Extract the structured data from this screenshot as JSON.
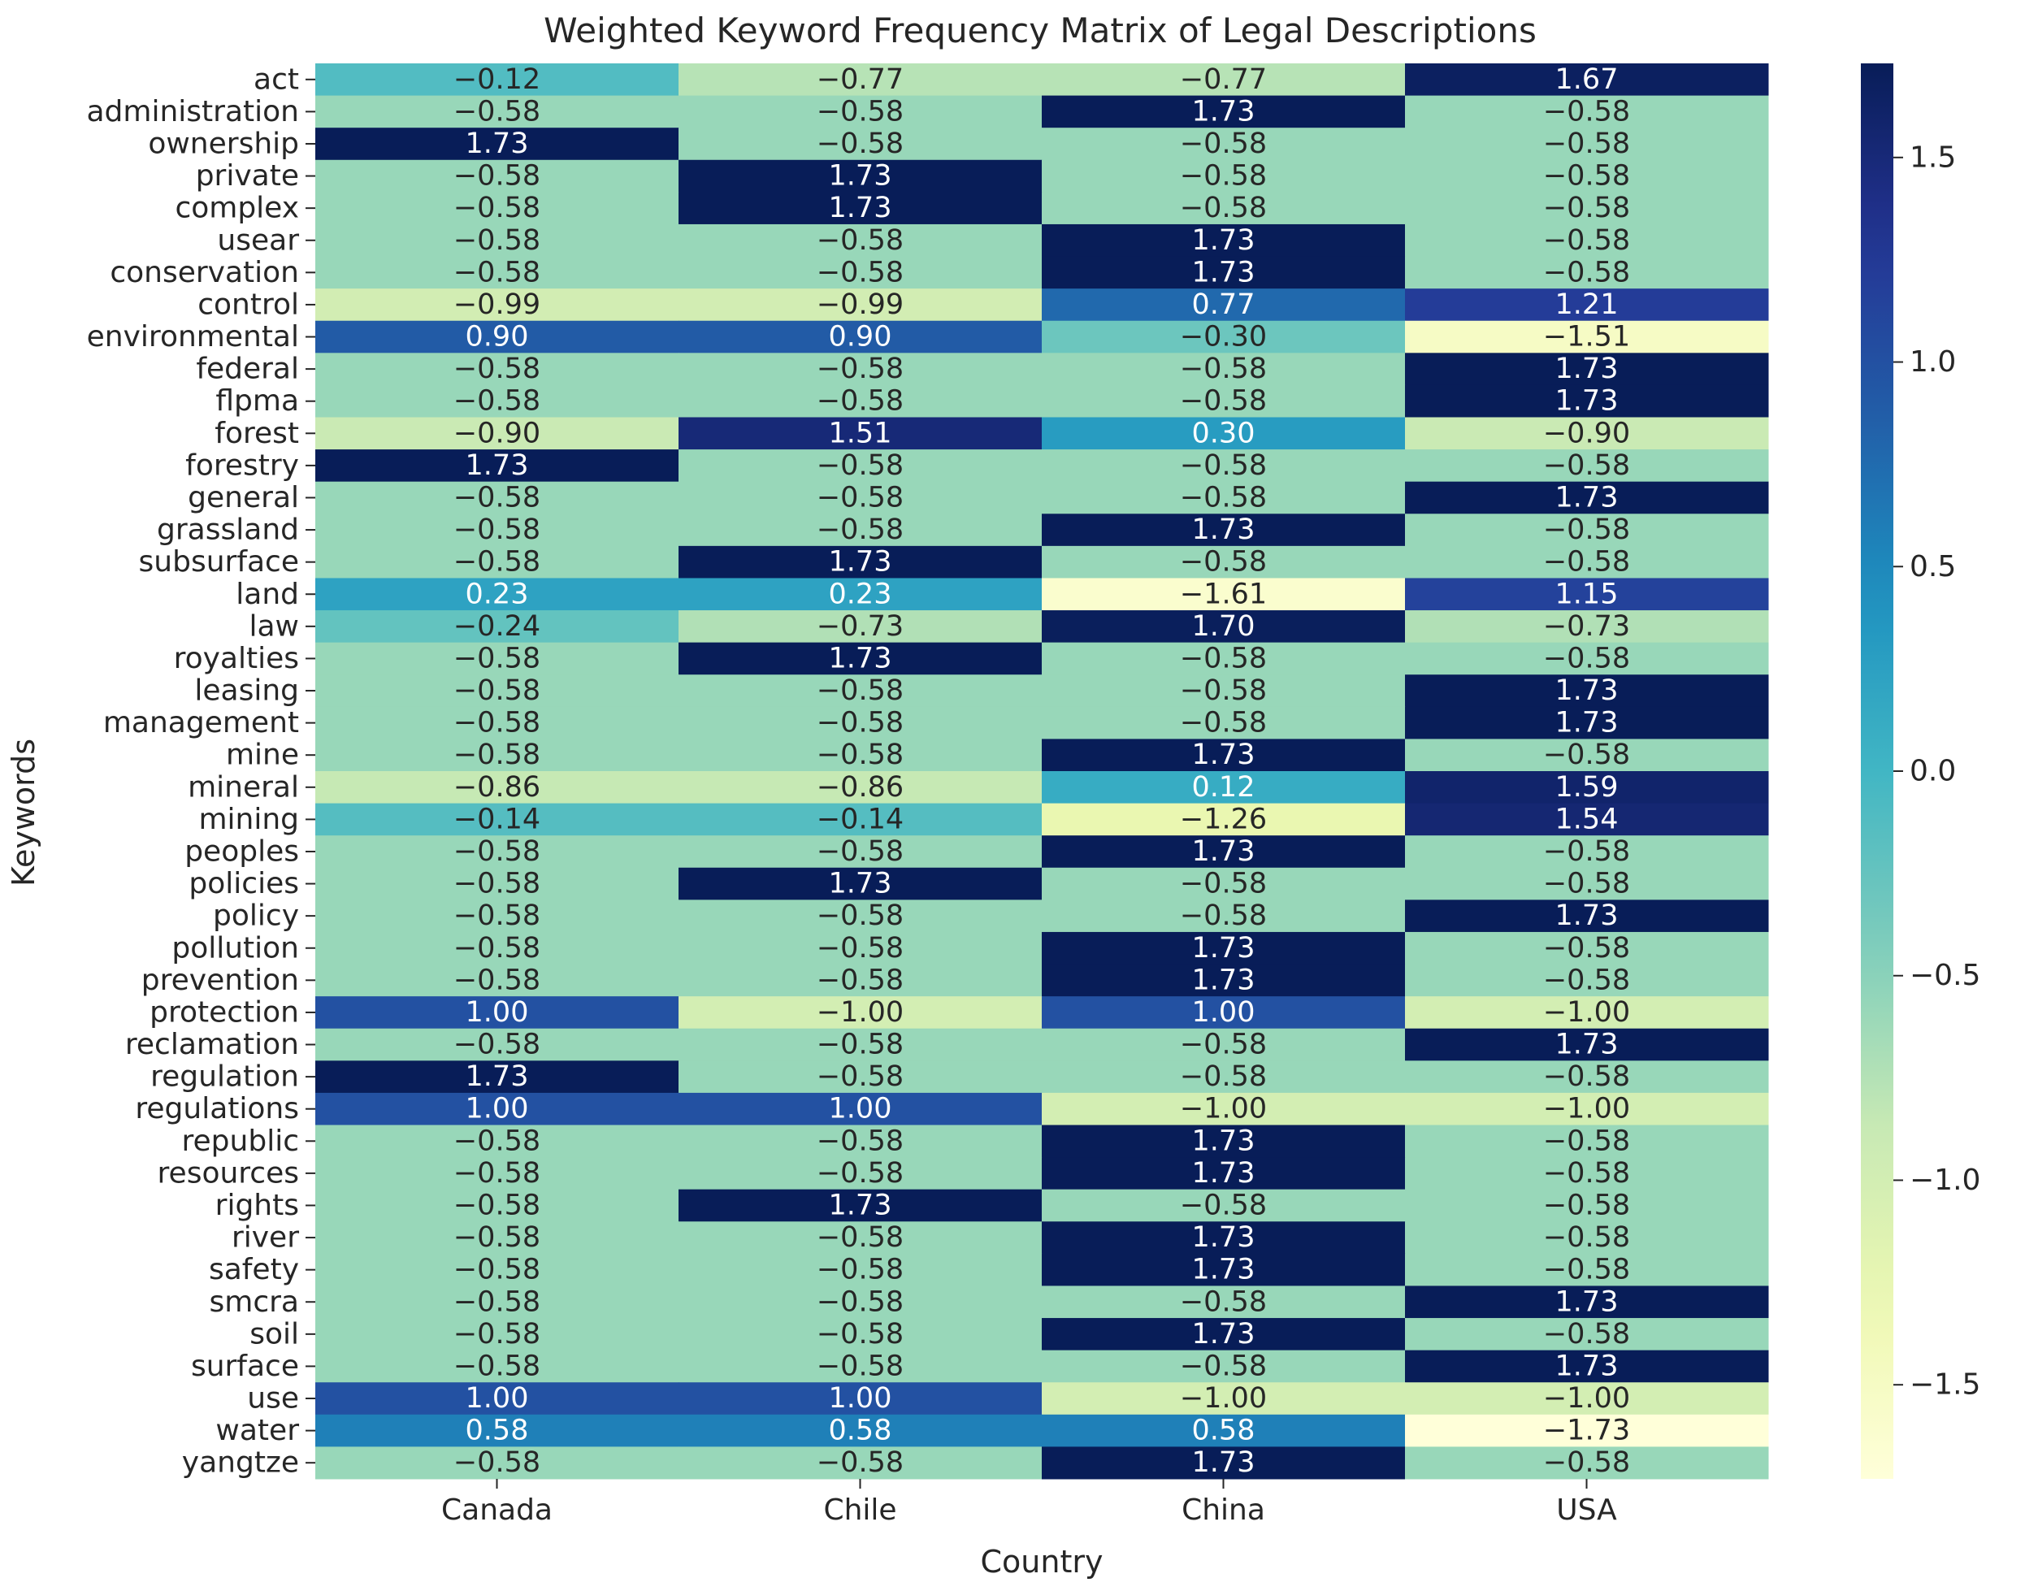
{
  "chart_data": {
    "type": "heatmap",
    "title": "Weighted Keyword Frequency Matrix of Legal Descriptions",
    "xlabel": "Country",
    "ylabel": "Keywords",
    "columns": [
      "Canada",
      "Chile",
      "China",
      "USA"
    ],
    "rows": [
      "act",
      "administration",
      "ownership",
      "private",
      "complex",
      "usear",
      "conservation",
      "control",
      "environmental",
      "federal",
      "flpma",
      "forest",
      "forestry",
      "general",
      "grassland",
      "subsurface",
      "land",
      "law",
      "royalties",
      "leasing",
      "management",
      "mine",
      "mineral",
      "mining",
      "peoples",
      "policies",
      "policy",
      "pollution",
      "prevention",
      "protection",
      "reclamation",
      "regulation",
      "regulations",
      "republic",
      "resources",
      "rights",
      "river",
      "safety",
      "smcra",
      "soil",
      "surface",
      "use",
      "water",
      "yangtze"
    ],
    "values": [
      [
        -0.12,
        -0.77,
        -0.77,
        1.67
      ],
      [
        -0.58,
        -0.58,
        1.73,
        -0.58
      ],
      [
        1.73,
        -0.58,
        -0.58,
        -0.58
      ],
      [
        -0.58,
        1.73,
        -0.58,
        -0.58
      ],
      [
        -0.58,
        1.73,
        -0.58,
        -0.58
      ],
      [
        -0.58,
        -0.58,
        1.73,
        -0.58
      ],
      [
        -0.58,
        -0.58,
        1.73,
        -0.58
      ],
      [
        -0.99,
        -0.99,
        0.77,
        1.21
      ],
      [
        0.9,
        0.9,
        -0.3,
        -1.51
      ],
      [
        -0.58,
        -0.58,
        -0.58,
        1.73
      ],
      [
        -0.58,
        -0.58,
        -0.58,
        1.73
      ],
      [
        -0.9,
        1.51,
        0.3,
        -0.9
      ],
      [
        1.73,
        -0.58,
        -0.58,
        -0.58
      ],
      [
        -0.58,
        -0.58,
        -0.58,
        1.73
      ],
      [
        -0.58,
        -0.58,
        1.73,
        -0.58
      ],
      [
        -0.58,
        1.73,
        -0.58,
        -0.58
      ],
      [
        0.23,
        0.23,
        -1.61,
        1.15
      ],
      [
        -0.24,
        -0.73,
        1.7,
        -0.73
      ],
      [
        -0.58,
        1.73,
        -0.58,
        -0.58
      ],
      [
        -0.58,
        -0.58,
        -0.58,
        1.73
      ],
      [
        -0.58,
        -0.58,
        -0.58,
        1.73
      ],
      [
        -0.58,
        -0.58,
        1.73,
        -0.58
      ],
      [
        -0.86,
        -0.86,
        0.12,
        1.59
      ],
      [
        -0.14,
        -0.14,
        -1.26,
        1.54
      ],
      [
        -0.58,
        -0.58,
        1.73,
        -0.58
      ],
      [
        -0.58,
        1.73,
        -0.58,
        -0.58
      ],
      [
        -0.58,
        -0.58,
        -0.58,
        1.73
      ],
      [
        -0.58,
        -0.58,
        1.73,
        -0.58
      ],
      [
        -0.58,
        -0.58,
        1.73,
        -0.58
      ],
      [
        1.0,
        -1.0,
        1.0,
        -1.0
      ],
      [
        -0.58,
        -0.58,
        -0.58,
        1.73
      ],
      [
        1.73,
        -0.58,
        -0.58,
        -0.58
      ],
      [
        1.0,
        1.0,
        -1.0,
        -1.0
      ],
      [
        -0.58,
        -0.58,
        1.73,
        -0.58
      ],
      [
        -0.58,
        -0.58,
        1.73,
        -0.58
      ],
      [
        -0.58,
        1.73,
        -0.58,
        -0.58
      ],
      [
        -0.58,
        -0.58,
        1.73,
        -0.58
      ],
      [
        -0.58,
        -0.58,
        1.73,
        -0.58
      ],
      [
        -0.58,
        -0.58,
        -0.58,
        1.73
      ],
      [
        -0.58,
        -0.58,
        1.73,
        -0.58
      ],
      [
        -0.58,
        -0.58,
        -0.58,
        1.73
      ],
      [
        1.0,
        1.0,
        -1.0,
        -1.0
      ],
      [
        0.58,
        0.58,
        0.58,
        -1.73
      ],
      [
        -0.58,
        -0.58,
        1.73,
        -0.58
      ]
    ],
    "value_format": "2 decimals",
    "vmin": -1.73,
    "vmax": 1.73,
    "colormap": "YlGnBu",
    "colorbar_ticks": [
      1.5,
      1.0,
      0.5,
      0.0,
      -0.5,
      -1.0,
      -1.5
    ],
    "colorbar_tick_labels": [
      "1.5",
      "1.0",
      "0.5",
      "0.0",
      "−0.5",
      "−1.0",
      "−1.5"
    ]
  }
}
